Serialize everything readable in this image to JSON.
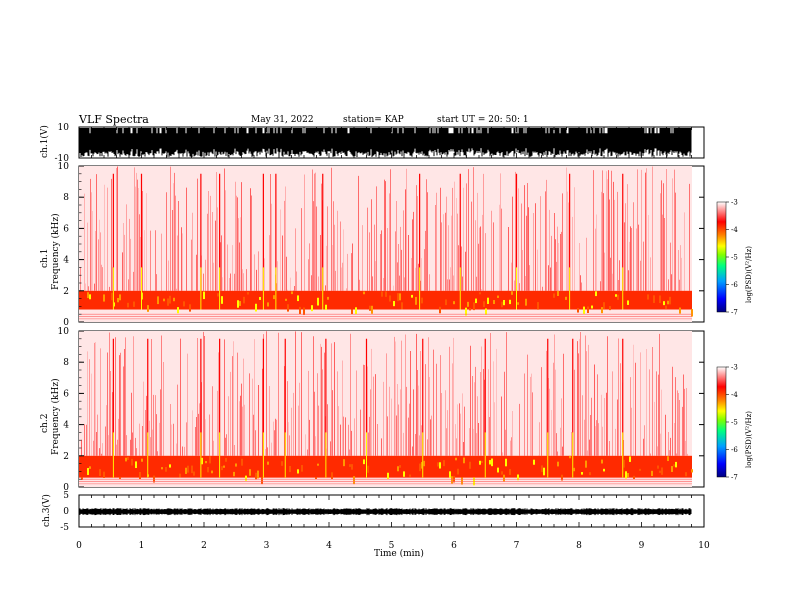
{
  "header": {
    "title": "VLF Spectra",
    "date": "May 31, 2022",
    "station": "station= KAP",
    "start": "start  UT  =   20: 50: 1"
  },
  "colors": {
    "spectrum_base": "#ff0000",
    "waveform": "#000000",
    "colorbar_stops": [
      "#000080",
      "#0000ff",
      "#00a0ff",
      "#00ff80",
      "#80ff00",
      "#ffff00",
      "#ff8000",
      "#ff0000",
      "#ffffff"
    ]
  },
  "chart_data": [
    {
      "id": "ch1-waveform",
      "type": "line",
      "ylabel": "ch.1(V)",
      "ylim": [
        -10,
        10
      ],
      "yticks": [
        "10",
        "-10"
      ],
      "xlim": [
        0,
        10
      ],
      "description_values": {
        "amplitude_typical_V": 10,
        "clipped": true
      }
    },
    {
      "id": "ch1-spectrogram",
      "type": "heatmap",
      "ylabel": "ch.1\nFrequency (kHz)",
      "ylim": [
        0,
        10
      ],
      "yticks": [
        "0",
        "2",
        "4",
        "6",
        "8",
        "10"
      ],
      "xlim": [
        0,
        10
      ],
      "band_kHz": [
        0.8,
        2.0
      ],
      "bright_minutes": [
        0.55,
        1.0,
        1.95,
        2.25,
        2.95,
        3.15,
        3.9,
        5.45,
        6.1,
        7.0,
        7.85,
        8.7
      ],
      "colorbar": {
        "label": "log(PSD)(V²/Hz)",
        "ticks": [
          "-3",
          "-4",
          "-5",
          "-6",
          "-7"
        ],
        "range": [
          -7,
          -3
        ]
      }
    },
    {
      "id": "ch2-spectrogram",
      "type": "heatmap",
      "ylabel": "ch.2\nFrequency (kHz)",
      "ylim": [
        0,
        10
      ],
      "yticks": [
        "0",
        "2",
        "4",
        "6",
        "8",
        "10"
      ],
      "xlim": [
        0,
        10
      ],
      "band_kHz": [
        0.6,
        2.0
      ],
      "bright_minutes": [
        0.55,
        1.1,
        1.95,
        2.25,
        2.95,
        3.3,
        3.95,
        4.6,
        5.5,
        6.5,
        7.5,
        7.9,
        8.7
      ],
      "colorbar": {
        "label": "log(PSD)(V²/Hz)",
        "ticks": [
          "-3",
          "-4",
          "-5",
          "-6",
          "-7"
        ],
        "range": [
          -7,
          -3
        ]
      }
    },
    {
      "id": "ch3-waveform",
      "type": "line",
      "ylabel": "ch.3(V)",
      "ylim": [
        -5,
        5
      ],
      "yticks": [
        "5",
        "0",
        "-5"
      ],
      "xlim": [
        0,
        10
      ],
      "description_values": {
        "amplitude_typical_V": 0.5
      }
    }
  ],
  "xaxis": {
    "label": "Time  (min)",
    "ticks": [
      "0",
      "1",
      "2",
      "3",
      "4",
      "5",
      "6",
      "7",
      "8",
      "9",
      "10"
    ]
  }
}
